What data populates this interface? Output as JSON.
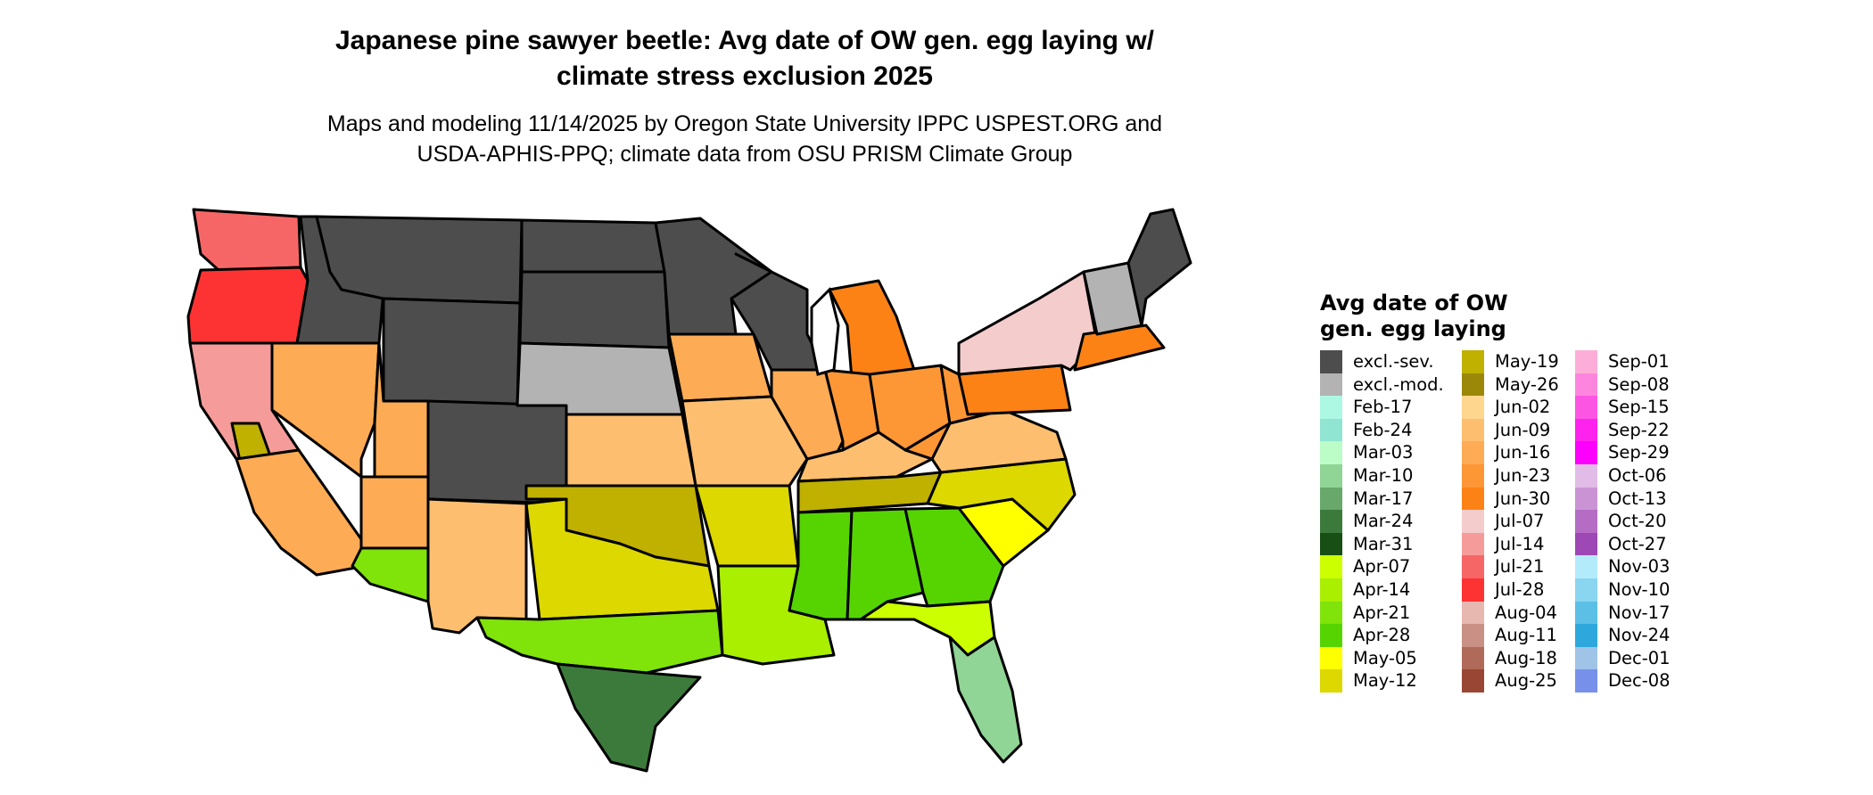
{
  "title": {
    "line1": "Japanese pine sawyer beetle: Avg date of OW gen. egg laying w/",
    "line2": "climate stress exclusion 2025"
  },
  "subtitle": {
    "line1": "Maps and modeling 11/14/2025 by Oregon State University IPPC USPEST.ORG and",
    "line2": "USDA-APHIS-PPQ; climate data from OSU PRISM Climate Group"
  },
  "legend": {
    "title_line1": "Avg date of OW",
    "title_line2": "gen. egg laying",
    "columns": [
      [
        {
          "label": "excl.-sev.",
          "color": "#4d4d4d"
        },
        {
          "label": "excl.-mod.",
          "color": "#b3b3b3"
        },
        {
          "label": "Feb-17",
          "color": "#adf8e3"
        },
        {
          "label": "Feb-24",
          "color": "#8fe4d2"
        },
        {
          "label": "Mar-03",
          "color": "#bcfcc6"
        },
        {
          "label": "Mar-10",
          "color": "#90d496"
        },
        {
          "label": "Mar-17",
          "color": "#68a86b"
        },
        {
          "label": "Mar-24",
          "color": "#3c7a3c"
        },
        {
          "label": "Mar-31",
          "color": "#174f14"
        },
        {
          "label": "Apr-07",
          "color": "#ccff00"
        },
        {
          "label": "Apr-14",
          "color": "#aaee00"
        },
        {
          "label": "Apr-21",
          "color": "#80e30a"
        },
        {
          "label": "Apr-28",
          "color": "#55d402"
        },
        {
          "label": "May-05",
          "color": "#ffff00"
        },
        {
          "label": "May-12",
          "color": "#dcd800"
        }
      ],
      [
        {
          "label": "May-19",
          "color": "#c0b000"
        },
        {
          "label": "May-26",
          "color": "#9c8808"
        },
        {
          "label": "Jun-02",
          "color": "#fed68e"
        },
        {
          "label": "Jun-09",
          "color": "#fdbf6f"
        },
        {
          "label": "Jun-16",
          "color": "#fdab55"
        },
        {
          "label": "Jun-23",
          "color": "#fd9736"
        },
        {
          "label": "Jun-30",
          "color": "#fd8216"
        },
        {
          "label": "Jul-07",
          "color": "#f4cccc"
        },
        {
          "label": "Jul-14",
          "color": "#f59c9a"
        },
        {
          "label": "Jul-21",
          "color": "#f76666"
        },
        {
          "label": "Jul-28",
          "color": "#fd3333"
        },
        {
          "label": "Aug-04",
          "color": "#e6b8b0"
        },
        {
          "label": "Aug-11",
          "color": "#c99085"
        },
        {
          "label": "Aug-18",
          "color": "#b06a5a"
        },
        {
          "label": "Aug-25",
          "color": "#9a4634"
        }
      ],
      [
        {
          "label": "Sep-01",
          "color": "#fdaed8"
        },
        {
          "label": "Sep-08",
          "color": "#fd85dd"
        },
        {
          "label": "Sep-15",
          "color": "#fd55e3"
        },
        {
          "label": "Sep-22",
          "color": "#fd22ed"
        },
        {
          "label": "Sep-29",
          "color": "#fd00fd"
        },
        {
          "label": "Oct-06",
          "color": "#e0bce6"
        },
        {
          "label": "Oct-13",
          "color": "#ca94d4"
        },
        {
          "label": "Oct-20",
          "color": "#b46cc4"
        },
        {
          "label": "Oct-27",
          "color": "#9d48b5"
        },
        {
          "label": "Nov-03",
          "color": "#b3ebfb"
        },
        {
          "label": "Nov-10",
          "color": "#8ad5f0"
        },
        {
          "label": "Nov-17",
          "color": "#5cbfe6"
        },
        {
          "label": "Nov-24",
          "color": "#2ea8dc"
        },
        {
          "label": "Dec-01",
          "color": "#a0c4e8"
        },
        {
          "label": "Dec-08",
          "color": "#7790ea"
        }
      ]
    ]
  },
  "map": {
    "ocean_color": "#ffffff",
    "border_color": "#000000",
    "regions": [
      {
        "name": "Washington",
        "category": "Jul-21"
      },
      {
        "name": "Oregon",
        "category": "Jul-28"
      },
      {
        "name": "California-north",
        "category": "Jul-14"
      },
      {
        "name": "California-central-valley",
        "category": "May-19"
      },
      {
        "name": "California-south",
        "category": "Jun-16"
      },
      {
        "name": "Idaho",
        "category": "excl.-sev."
      },
      {
        "name": "Nevada",
        "category": "Jun-16"
      },
      {
        "name": "Montana",
        "category": "excl.-sev."
      },
      {
        "name": "Wyoming",
        "category": "excl.-sev."
      },
      {
        "name": "Utah",
        "category": "Jun-16"
      },
      {
        "name": "Colorado",
        "category": "excl.-sev."
      },
      {
        "name": "Arizona",
        "category": "Jun-16"
      },
      {
        "name": "Arizona-south",
        "category": "Apr-21"
      },
      {
        "name": "New Mexico",
        "category": "Jun-09"
      },
      {
        "name": "North Dakota",
        "category": "excl.-sev."
      },
      {
        "name": "South Dakota",
        "category": "excl.-sev."
      },
      {
        "name": "Nebraska",
        "category": "excl.-mod."
      },
      {
        "name": "Kansas",
        "category": "Jun-09"
      },
      {
        "name": "Oklahoma",
        "category": "May-19"
      },
      {
        "name": "Texas-north",
        "category": "May-12"
      },
      {
        "name": "Texas-central",
        "category": "Apr-21"
      },
      {
        "name": "Texas-south",
        "category": "Mar-24"
      },
      {
        "name": "Minnesota",
        "category": "excl.-sev."
      },
      {
        "name": "Iowa",
        "category": "Jun-16"
      },
      {
        "name": "Missouri",
        "category": "Jun-09"
      },
      {
        "name": "Arkansas",
        "category": "May-12"
      },
      {
        "name": "Louisiana",
        "category": "Apr-14"
      },
      {
        "name": "Wisconsin",
        "category": "excl.-sev."
      },
      {
        "name": "Illinois",
        "category": "Jun-16"
      },
      {
        "name": "Michigan",
        "category": "Jun-30"
      },
      {
        "name": "Indiana",
        "category": "Jun-23"
      },
      {
        "name": "Ohio",
        "category": "Jun-23"
      },
      {
        "name": "Kentucky",
        "category": "Jun-09"
      },
      {
        "name": "Tennessee",
        "category": "May-19"
      },
      {
        "name": "Mississippi",
        "category": "Apr-28"
      },
      {
        "name": "Alabama",
        "category": "Apr-28"
      },
      {
        "name": "Georgia",
        "category": "Apr-28"
      },
      {
        "name": "Florida-north",
        "category": "Apr-07"
      },
      {
        "name": "Florida-south",
        "category": "Mar-10"
      },
      {
        "name": "South Carolina",
        "category": "May-05"
      },
      {
        "name": "North Carolina",
        "category": "May-12"
      },
      {
        "name": "Virginia",
        "category": "Jun-09"
      },
      {
        "name": "West Virginia",
        "category": "Jun-23"
      },
      {
        "name": "Pennsylvania",
        "category": "Jun-30"
      },
      {
        "name": "New York",
        "category": "Jul-07"
      },
      {
        "name": "New England-south",
        "category": "Jun-30"
      },
      {
        "name": "Vermont-New Hampshire",
        "category": "excl.-mod."
      },
      {
        "name": "Maine",
        "category": "excl.-sev."
      }
    ]
  }
}
